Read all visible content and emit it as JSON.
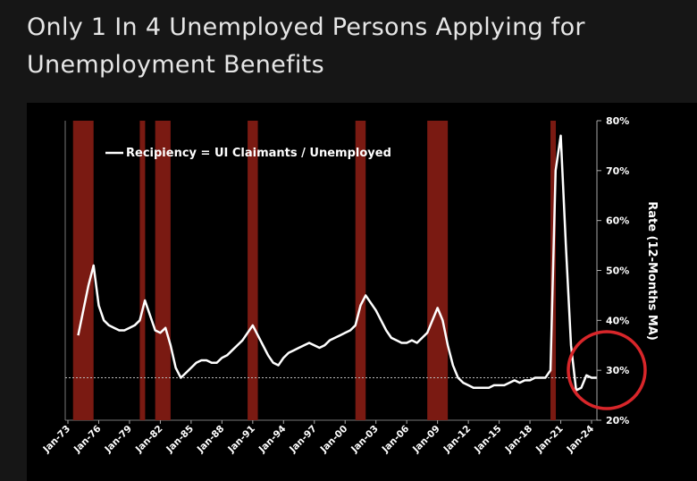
{
  "chart_data": {
    "type": "line",
    "title": "Only 1 In 4 Unemployed Persons Applying for Unemployment Benefits",
    "y_axis_label": "Rate (12-Months MA)",
    "categories": [
      "Jan-73",
      "Jul-73",
      "Jan-74",
      "Jul-74",
      "Jan-75",
      "Jul-75",
      "Jan-76",
      "Jul-76",
      "Jan-77",
      "Jul-77",
      "Jan-78",
      "Jul-78",
      "Jan-79",
      "Jul-79",
      "Jan-80",
      "Jul-80",
      "Jan-81",
      "Jul-81",
      "Jan-82",
      "Jul-82",
      "Jan-83",
      "Jul-83",
      "Jan-84",
      "Jul-84",
      "Jan-85",
      "Jul-85",
      "Jan-86",
      "Jul-86",
      "Jan-87",
      "Jul-87",
      "Jan-88",
      "Jul-88",
      "Jan-89",
      "Jul-89",
      "Jan-90",
      "Jul-90",
      "Jan-91",
      "Jul-91",
      "Jan-92",
      "Jul-92",
      "Jan-93",
      "Jul-93",
      "Jan-94",
      "Jul-94",
      "Jan-95",
      "Jul-95",
      "Jan-96",
      "Jul-96",
      "Jan-97",
      "Jul-97",
      "Jan-98",
      "Jul-98",
      "Jan-99",
      "Jul-99",
      "Jan-00",
      "Jul-00",
      "Jan-01",
      "Jul-01",
      "Jan-02",
      "Jul-02",
      "Jan-03",
      "Jul-03",
      "Jan-04",
      "Jul-04",
      "Jan-05",
      "Jul-05",
      "Jan-06",
      "Jul-06",
      "Jan-07",
      "Jul-07",
      "Jan-08",
      "Jul-08",
      "Jan-09",
      "Jul-09",
      "Jan-10",
      "Jul-10",
      "Jan-11",
      "Jul-11",
      "Jan-12",
      "Jul-12",
      "Jan-13",
      "Jul-13",
      "Jan-14",
      "Jul-14",
      "Jan-15",
      "Jul-15",
      "Jan-16",
      "Jul-16",
      "Jan-17",
      "Jul-17",
      "Jan-18",
      "Jul-18",
      "Jan-19",
      "Jul-19",
      "Jan-20",
      "Jul-20",
      "Jan-21",
      "Jul-21",
      "Jan-22",
      "Jul-22",
      "Jan-23",
      "Jul-23",
      "Jan-24",
      "Jul-24"
    ],
    "series": [
      {
        "name": "Recipiency = UI Claimants / Unemployed",
        "color": "#ffffff",
        "values": [
          null,
          null,
          37,
          42,
          47,
          51,
          43,
          40,
          39,
          38.5,
          38,
          38,
          38.5,
          39,
          40,
          44,
          41,
          38,
          37.5,
          38.5,
          35,
          30.5,
          28.5,
          29.5,
          30.5,
          31.5,
          32,
          32,
          31.5,
          31.5,
          32.5,
          33,
          34,
          35,
          36,
          37.5,
          39,
          37,
          35,
          33,
          31.5,
          31,
          32.5,
          33.5,
          34,
          34.5,
          35,
          35.5,
          35,
          34.5,
          35,
          36,
          36.5,
          37,
          37.5,
          38,
          39,
          43,
          45,
          43.5,
          42,
          40,
          38,
          36.5,
          36,
          35.5,
          35.5,
          36,
          35.5,
          36.5,
          37.5,
          40,
          42.5,
          40,
          35,
          31,
          28.5,
          27.5,
          27,
          26.5,
          26.5,
          26.5,
          26.5,
          27,
          27,
          27,
          27.5,
          28,
          27.5,
          28,
          28,
          28.5,
          28.5,
          28.5,
          30,
          70,
          77,
          55,
          35,
          26,
          26.5,
          29,
          28.5,
          28.5
        ]
      }
    ],
    "recessions": [
      {
        "start": "Jul-73",
        "end": "Jul-75"
      },
      {
        "start": "Jan-80",
        "end": "Jul-80"
      },
      {
        "start": "Jul-81",
        "end": "Jan-83"
      },
      {
        "start": "Jul-90",
        "end": "Jul-91"
      },
      {
        "start": "Jan-01",
        "end": "Jan-02"
      },
      {
        "start": "Jan-08",
        "end": "Jan-10"
      },
      {
        "start": "Jan-20",
        "end": "Jul-20"
      }
    ],
    "recession_color": "#7a1a12",
    "reference_line": 28.5,
    "xticks": [
      "Jan-73",
      "Jan-76",
      "Jan-79",
      "Jan-82",
      "Jan-85",
      "Jan-88",
      "Jan-91",
      "Jan-94",
      "Jan-97",
      "Jan-00",
      "Jan-03",
      "Jan-06",
      "Jan-09",
      "Jan-12",
      "Jan-15",
      "Jan-18",
      "Jan-21",
      "Jan-24"
    ],
    "ylim": [
      20,
      80
    ],
    "yticks": [
      {
        "value": 20,
        "label": "20%"
      },
      {
        "value": 30,
        "label": "30%"
      },
      {
        "value": 40,
        "label": "40%"
      },
      {
        "value": 50,
        "label": "50%"
      },
      {
        "value": 60,
        "label": "60%"
      },
      {
        "value": 70,
        "label": "70%"
      },
      {
        "value": 80,
        "label": "80%"
      }
    ]
  }
}
